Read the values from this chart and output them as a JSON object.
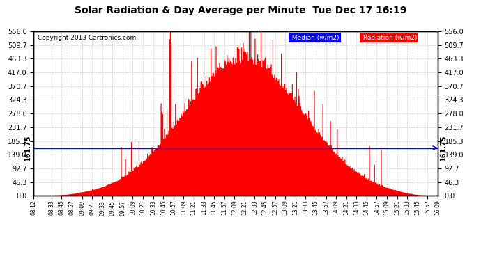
{
  "title": "Solar Radiation & Day Average per Minute  Tue Dec 17 16:19",
  "copyright": "Copyright 2013 Cartronics.com",
  "median_value": 161.75,
  "ymax": 556.0,
  "yticks": [
    0.0,
    46.3,
    92.7,
    139.0,
    185.3,
    231.7,
    278.0,
    324.3,
    370.7,
    417.0,
    463.3,
    509.7,
    556.0
  ],
  "bar_color": "#ff0000",
  "median_color": "#0000ff",
  "background_color": "#ffffff",
  "grid_color": "#cccccc",
  "time_labels": [
    "08:12",
    "08:33",
    "08:45",
    "08:57",
    "09:09",
    "09:21",
    "09:33",
    "09:45",
    "09:57",
    "10:09",
    "10:21",
    "10:33",
    "10:45",
    "10:57",
    "11:09",
    "11:21",
    "11:33",
    "11:45",
    "11:57",
    "12:09",
    "12:21",
    "12:33",
    "12:45",
    "12:57",
    "13:09",
    "13:21",
    "13:33",
    "13:45",
    "13:57",
    "14:09",
    "14:21",
    "14:33",
    "14:45",
    "14:57",
    "15:09",
    "15:21",
    "15:33",
    "15:45",
    "15:57",
    "16:09"
  ]
}
